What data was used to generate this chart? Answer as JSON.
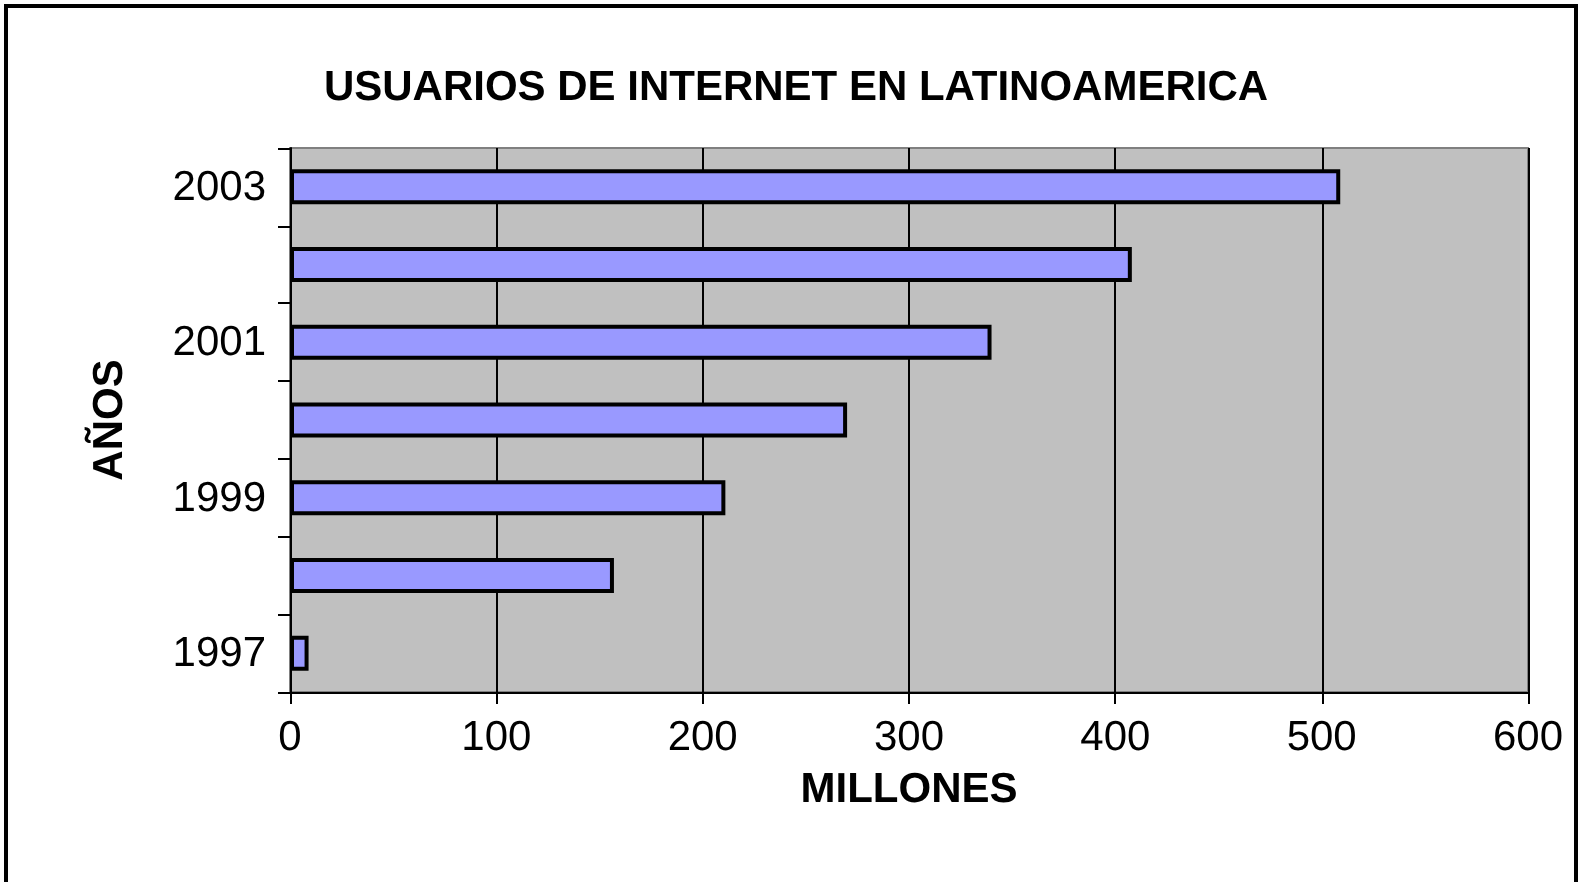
{
  "chart_data": {
    "type": "bar",
    "orientation": "horizontal",
    "title": "USUARIOS DE INTERNET EN LATINOAMERICA",
    "xlabel": "MILLONES",
    "ylabel": "AÑOS",
    "categories": [
      "2003",
      null,
      "2001",
      null,
      "1999",
      null,
      "1997"
    ],
    "values": [
      509,
      408,
      340,
      270,
      211,
      157,
      9
    ],
    "color": "#9999ff",
    "xlim": [
      0,
      600
    ],
    "xticks": [
      0,
      100,
      200,
      300,
      400,
      500,
      600
    ],
    "grid": "x"
  }
}
